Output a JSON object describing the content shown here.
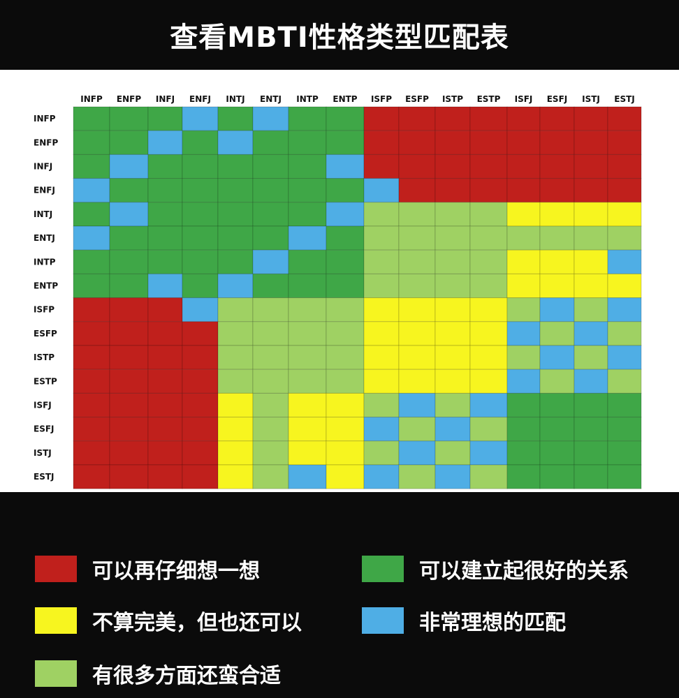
{
  "title": "查看MBTI性格类型匹配表",
  "colors": {
    "R": "#c0201c",
    "G": "#3fa747",
    "L": "#9fd163",
    "Y": "#f7f51f",
    "B": "#4faee5"
  },
  "legend": [
    {
      "code": "R",
      "label": "可以再仔细想一想"
    },
    {
      "code": "G",
      "label": "可以建立起很好的关系"
    },
    {
      "code": "Y",
      "label": "不算完美，但也还可以"
    },
    {
      "code": "B",
      "label": "非常理想的匹配"
    },
    {
      "code": "L",
      "label": "有很多方面还蛮合适"
    }
  ],
  "chart_data": {
    "type": "heatmap",
    "columns": [
      "INFP",
      "ENFP",
      "INFJ",
      "ENFJ",
      "INTJ",
      "ENTJ",
      "INTP",
      "ENTP",
      "ISFP",
      "ESFP",
      "ISTP",
      "ESTP",
      "ISFJ",
      "ESFJ",
      "ISTJ",
      "ESTJ"
    ],
    "rows": [
      "INFP",
      "ENFP",
      "INFJ",
      "ENFJ",
      "INTJ",
      "ENTJ",
      "INTP",
      "ENTP",
      "ISFP",
      "ESFP",
      "ISTP",
      "ESTP",
      "ISFJ",
      "ESFJ",
      "ISTJ",
      "ESTJ"
    ],
    "cells": [
      [
        "G",
        "G",
        "G",
        "B",
        "G",
        "B",
        "G",
        "G",
        "R",
        "R",
        "R",
        "R",
        "R",
        "R",
        "R",
        "R"
      ],
      [
        "G",
        "G",
        "B",
        "G",
        "B",
        "G",
        "G",
        "G",
        "R",
        "R",
        "R",
        "R",
        "R",
        "R",
        "R",
        "R"
      ],
      [
        "G",
        "B",
        "G",
        "G",
        "G",
        "G",
        "G",
        "B",
        "R",
        "R",
        "R",
        "R",
        "R",
        "R",
        "R",
        "R"
      ],
      [
        "B",
        "G",
        "G",
        "G",
        "G",
        "G",
        "G",
        "G",
        "B",
        "R",
        "R",
        "R",
        "R",
        "R",
        "R",
        "R"
      ],
      [
        "G",
        "B",
        "G",
        "G",
        "G",
        "G",
        "G",
        "B",
        "L",
        "L",
        "L",
        "L",
        "Y",
        "Y",
        "Y",
        "Y"
      ],
      [
        "B",
        "G",
        "G",
        "G",
        "G",
        "G",
        "B",
        "G",
        "L",
        "L",
        "L",
        "L",
        "L",
        "L",
        "L",
        "L"
      ],
      [
        "G",
        "G",
        "G",
        "G",
        "G",
        "B",
        "G",
        "G",
        "L",
        "L",
        "L",
        "L",
        "Y",
        "Y",
        "Y",
        "B"
      ],
      [
        "G",
        "G",
        "B",
        "G",
        "B",
        "G",
        "G",
        "G",
        "L",
        "L",
        "L",
        "L",
        "Y",
        "Y",
        "Y",
        "Y"
      ],
      [
        "R",
        "R",
        "R",
        "B",
        "L",
        "L",
        "L",
        "L",
        "Y",
        "Y",
        "Y",
        "Y",
        "L",
        "B",
        "L",
        "B"
      ],
      [
        "R",
        "R",
        "R",
        "R",
        "L",
        "L",
        "L",
        "L",
        "Y",
        "Y",
        "Y",
        "Y",
        "B",
        "L",
        "B",
        "L"
      ],
      [
        "R",
        "R",
        "R",
        "R",
        "L",
        "L",
        "L",
        "L",
        "Y",
        "Y",
        "Y",
        "Y",
        "L",
        "B",
        "L",
        "B"
      ],
      [
        "R",
        "R",
        "R",
        "R",
        "L",
        "L",
        "L",
        "L",
        "Y",
        "Y",
        "Y",
        "Y",
        "B",
        "L",
        "B",
        "L"
      ],
      [
        "R",
        "R",
        "R",
        "R",
        "Y",
        "L",
        "Y",
        "Y",
        "L",
        "B",
        "L",
        "B",
        "G",
        "G",
        "G",
        "G"
      ],
      [
        "R",
        "R",
        "R",
        "R",
        "Y",
        "L",
        "Y",
        "Y",
        "B",
        "L",
        "B",
        "L",
        "G",
        "G",
        "G",
        "G"
      ],
      [
        "R",
        "R",
        "R",
        "R",
        "Y",
        "L",
        "Y",
        "Y",
        "L",
        "B",
        "L",
        "B",
        "G",
        "G",
        "G",
        "G"
      ],
      [
        "R",
        "R",
        "R",
        "R",
        "Y",
        "L",
        "B",
        "Y",
        "B",
        "L",
        "B",
        "L",
        "G",
        "G",
        "G",
        "G"
      ]
    ]
  }
}
